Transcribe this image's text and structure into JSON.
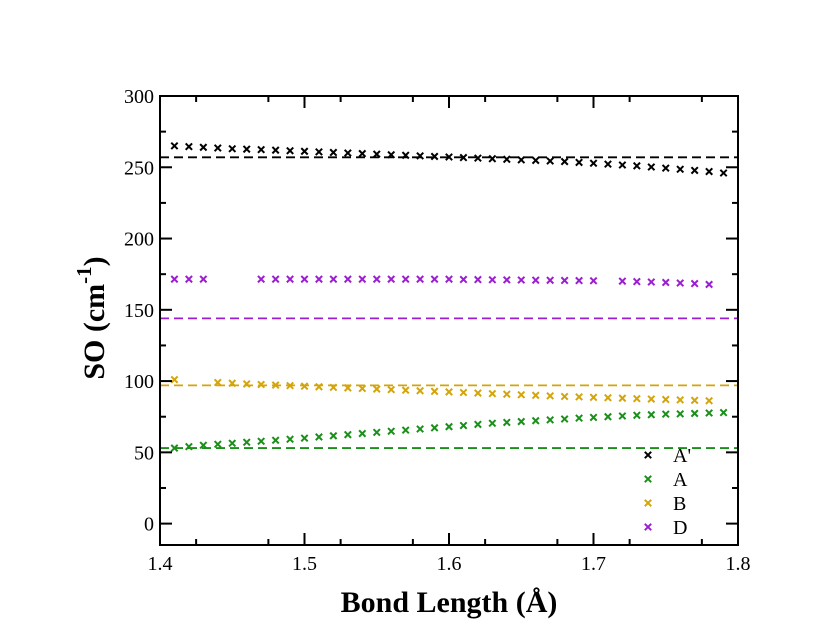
{
  "chart_data": {
    "type": "scatter",
    "title": "",
    "xlabel": "Bond Length (Å)",
    "ylabel_main": "SO (cm",
    "ylabel_sup": "-1",
    "ylabel_close": ")",
    "xlim": [
      1.4,
      1.8
    ],
    "ylim": [
      -15,
      300
    ],
    "xticks": [
      1.4,
      1.5,
      1.6,
      1.7,
      1.8
    ],
    "xtick_labels": [
      "1.4",
      "1.5",
      "1.6",
      "1.7",
      "1.8"
    ],
    "yticks": [
      0,
      50,
      100,
      150,
      200,
      250,
      300
    ],
    "ytick_labels": [
      "0",
      "50",
      "100",
      "150",
      "200",
      "250",
      "300"
    ],
    "grid": false,
    "legend_position": "bottom-right",
    "series": [
      {
        "name": "A'",
        "color": "#000000",
        "marker": "x",
        "x": [
          1.41,
          1.42,
          1.43,
          1.44,
          1.45,
          1.46,
          1.47,
          1.48,
          1.49,
          1.5,
          1.51,
          1.52,
          1.53,
          1.54,
          1.55,
          1.56,
          1.57,
          1.58,
          1.59,
          1.6,
          1.61,
          1.62,
          1.63,
          1.64,
          1.65,
          1.66,
          1.67,
          1.68,
          1.69,
          1.7,
          1.71,
          1.72,
          1.73,
          1.74,
          1.75,
          1.76,
          1.77,
          1.78,
          1.79
        ],
        "y": [
          265,
          264.5,
          264,
          263.5,
          263,
          262.7,
          262.4,
          262,
          261.6,
          261.2,
          260.8,
          260.4,
          260,
          259.6,
          259.2,
          258.8,
          258.4,
          258,
          257.6,
          257.2,
          256.8,
          256.4,
          256,
          255.6,
          255.2,
          254.8,
          254.4,
          254,
          253.4,
          252.8,
          252.2,
          251.6,
          251,
          250.2,
          249.4,
          248.6,
          247.8,
          247,
          246
        ]
      },
      {
        "name": "A",
        "color": "#1a8f1a",
        "marker": "x",
        "x": [
          1.41,
          1.42,
          1.43,
          1.44,
          1.45,
          1.46,
          1.47,
          1.48,
          1.49,
          1.5,
          1.51,
          1.52,
          1.53,
          1.54,
          1.55,
          1.56,
          1.57,
          1.58,
          1.59,
          1.6,
          1.61,
          1.62,
          1.63,
          1.64,
          1.65,
          1.66,
          1.67,
          1.68,
          1.69,
          1.7,
          1.71,
          1.72,
          1.73,
          1.74,
          1.75,
          1.76,
          1.77,
          1.78,
          1.79
        ],
        "y": [
          53,
          54,
          55,
          55.7,
          56.4,
          57.1,
          57.8,
          58.5,
          59.2,
          60,
          60.8,
          61.6,
          62.4,
          63.2,
          64,
          64.8,
          65.6,
          66.4,
          67.2,
          68,
          68.8,
          69.6,
          70.4,
          71,
          71.6,
          72.2,
          72.8,
          73.4,
          74,
          74.5,
          75,
          75.5,
          76,
          76.4,
          76.8,
          77,
          77.3,
          77.6,
          77.9
        ]
      },
      {
        "name": "B",
        "color": "#d4a50a",
        "marker": "x",
        "x": [
          1.41,
          1.44,
          1.45,
          1.46,
          1.47,
          1.48,
          1.49,
          1.5,
          1.51,
          1.52,
          1.53,
          1.54,
          1.55,
          1.56,
          1.57,
          1.58,
          1.59,
          1.6,
          1.61,
          1.62,
          1.63,
          1.64,
          1.65,
          1.66,
          1.67,
          1.68,
          1.69,
          1.7,
          1.71,
          1.72,
          1.73,
          1.74,
          1.75,
          1.76,
          1.77,
          1.78
        ],
        "y": [
          101,
          99,
          98.5,
          98,
          97.6,
          97.2,
          96.8,
          96.4,
          96,
          95.6,
          95.2,
          94.8,
          94.4,
          94,
          93.6,
          93.2,
          92.8,
          92.4,
          92,
          91.6,
          91.2,
          90.8,
          90.4,
          90,
          89.6,
          89.2,
          88.9,
          88.6,
          88.3,
          88,
          87.7,
          87.4,
          87.1,
          86.8,
          86.5,
          86.2
        ]
      },
      {
        "name": "D",
        "color": "#9b1fd0",
        "marker": "x",
        "x": [
          1.41,
          1.42,
          1.43,
          1.47,
          1.48,
          1.49,
          1.5,
          1.51,
          1.52,
          1.53,
          1.54,
          1.55,
          1.56,
          1.57,
          1.58,
          1.59,
          1.6,
          1.61,
          1.62,
          1.63,
          1.64,
          1.65,
          1.66,
          1.67,
          1.68,
          1.69,
          1.7,
          1.72,
          1.73,
          1.74,
          1.75,
          1.76,
          1.77,
          1.78
        ],
        "y": [
          171.5,
          171.5,
          171.5,
          171.5,
          171.5,
          171.5,
          171.5,
          171.5,
          171.5,
          171.5,
          171.5,
          171.5,
          171.5,
          171.5,
          171.5,
          171.5,
          171.5,
          171.3,
          171.2,
          171.1,
          171,
          170.9,
          170.8,
          170.7,
          170.6,
          170.5,
          170.4,
          170.1,
          169.8,
          169.5,
          169.2,
          168.8,
          168.4,
          167.8
        ]
      }
    ],
    "reference_lines": [
      {
        "name": "A' reference",
        "color": "#000000",
        "y": 257,
        "style": "dashed"
      },
      {
        "name": "A reference",
        "color": "#1a8f1a",
        "y": 53,
        "style": "dashed"
      },
      {
        "name": "B reference",
        "color": "#d4a50a",
        "y": 97,
        "style": "dashed"
      },
      {
        "name": "D reference",
        "color": "#9b1fd0",
        "y": 144,
        "style": "dashed"
      }
    ]
  }
}
